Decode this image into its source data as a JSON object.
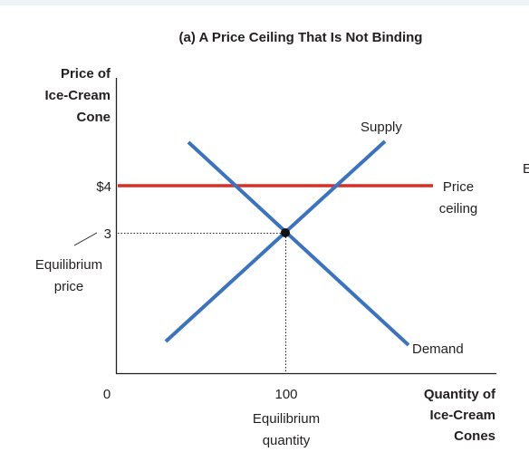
{
  "title": "(a) A Price Ceiling That Is Not Binding",
  "y_axis_label": [
    "Price of",
    "Ice-Cream",
    "Cone"
  ],
  "x_axis_label": [
    "Quantity of",
    "Ice-Cream",
    "Cones"
  ],
  "tick_labels": {
    "price_4": "$4",
    "price_3": "3",
    "origin": "0",
    "quantity_100": "100"
  },
  "curve_labels": {
    "supply": "Supply",
    "demand": "Demand",
    "price_ceiling": [
      "Price",
      "ceiling"
    ]
  },
  "annotations": {
    "equilibrium_price": [
      "Equilibrium",
      "price"
    ],
    "equilibrium_quantity": [
      "Equilibrium",
      "quantity"
    ]
  },
  "edge_fragment": "E",
  "colors": {
    "curves": "#3a73bf",
    "price_ceiling": "#d92f27",
    "axis": "#231f20",
    "text": "#231f20",
    "page_background": "#eef3f8"
  },
  "chart_data": {
    "type": "line",
    "equilibrium": {
      "price": 3,
      "quantity": 100
    },
    "price_ceiling": 4
  }
}
